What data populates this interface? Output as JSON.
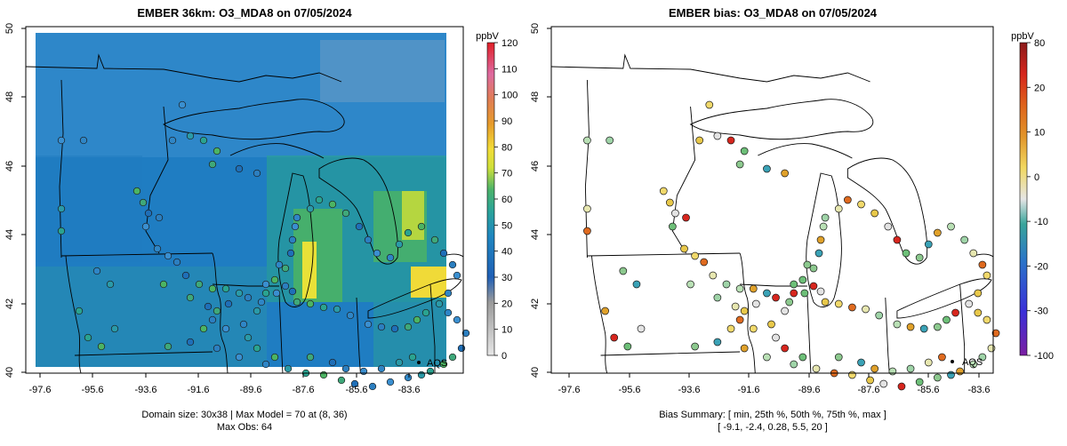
{
  "panels": [
    {
      "title": "EMBER 36km: O3_MDA8 on 07/05/2024",
      "colorbar_unit": "ppbV",
      "colorbar_ticks": [
        "0",
        "10",
        "20",
        "30",
        "40",
        "50",
        "60",
        "70",
        "80",
        "90",
        "100",
        "110",
        "120"
      ],
      "legend_label": "AQS",
      "footer_line1": "Domain size: 30x38 | Max Model = 70 at (8, 36)",
      "footer_line2": "Max Obs: 64"
    },
    {
      "title": "EMBER bias: O3_MDA8 on 07/05/2024",
      "colorbar_unit": "ppbV",
      "colorbar_ticks": [
        "-100",
        "-30",
        "-20",
        "-10",
        "0",
        "10",
        "20",
        "80"
      ],
      "legend_label": "AQS",
      "footer_line1": "Bias Summary: [ min, 25th %, 50th %, 75th %, max ]",
      "footer_line2": "[ -9.1,   -2.4,   0.28,   5.5,   20 ]"
    }
  ],
  "axes": {
    "x_ticks": [
      "-97.6",
      "-95.6",
      "-93.6",
      "-91.6",
      "-89.6",
      "-87.6",
      "-85.6",
      "-83.6"
    ],
    "y_ticks": [
      "40",
      "42",
      "44",
      "46",
      "48",
      "50"
    ]
  },
  "colors": {
    "model_scale": [
      "#d9d9d9",
      "#bdbdbd",
      "#8f8f8f",
      "#2c5fb3",
      "#1f78c1",
      "#2b93b5",
      "#38a878",
      "#8ec84a",
      "#f2e23a",
      "#e7a12c",
      "#e07b2c",
      "#de5f8c",
      "#e84a7a",
      "#e0242a"
    ],
    "bias_scale": [
      "#7b1fa2",
      "#2838d8",
      "#2b6fc7",
      "#3aa2b6",
      "#6dbf78",
      "#e3e3e3",
      "#f1d96b",
      "#e0a12a",
      "#df6a1f",
      "#d7261e",
      "#8b1a1a"
    ]
  }
}
